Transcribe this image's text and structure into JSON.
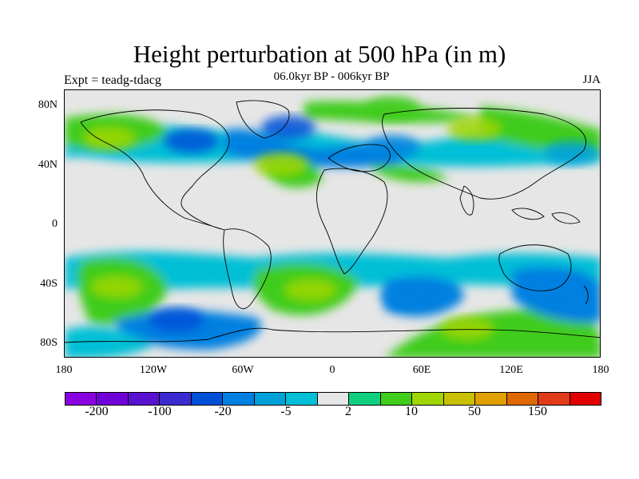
{
  "title": "Height perturbation at 500 hPa (in m)",
  "subtitle": "06.0kyr BP - 006kyr BP",
  "left_label": "Expt = teadg-tdacg",
  "right_label": "JJA",
  "map": {
    "projection": "cylindrical equidistant",
    "lon_range": [
      -180,
      180
    ],
    "lat_range": [
      -90,
      90
    ],
    "lat_ticks": [
      "80N",
      "40N",
      "0",
      "40S",
      "80S"
    ],
    "lon_ticks": [
      "180",
      "120W",
      "60W",
      "0",
      "60E",
      "120E",
      "180"
    ],
    "anomaly_regions": [
      {
        "name": "west-pacific-north-pos",
        "lon": -150,
        "lat": 58,
        "class": "positive",
        "color": "#a0d600"
      },
      {
        "name": "north-atlantic-pos",
        "lon": -35,
        "lat": 40,
        "class": "positive",
        "color": "#a0d600"
      },
      {
        "name": "arctic-europe-pos",
        "lon": 40,
        "lat": 78,
        "class": "positive",
        "color": "#3fcc1a"
      },
      {
        "name": "central-asia-pos",
        "lon": 95,
        "lat": 64,
        "class": "positive",
        "color": "#a0d600"
      },
      {
        "name": "east-asia-neg",
        "lon": 160,
        "lat": 48,
        "class": "negative",
        "color": "#00a0d8"
      },
      {
        "name": "north-america-neg",
        "lon": -95,
        "lat": 56,
        "class": "negative",
        "color": "#0050d8"
      },
      {
        "name": "north-atlantic-neg",
        "lon": -30,
        "lat": 65,
        "class": "negative",
        "color": "#0050d8"
      },
      {
        "name": "europe-neg",
        "lon": 40,
        "lat": 52,
        "class": "negative",
        "color": "#0080e0"
      },
      {
        "name": "south-pacific-pos",
        "lon": -145,
        "lat": -42,
        "class": "positive",
        "color": "#a0d600"
      },
      {
        "name": "south-atlantic-pos",
        "lon": -15,
        "lat": -44,
        "class": "positive",
        "color": "#a0d600"
      },
      {
        "name": "indian-ocean-neg",
        "lon": 50,
        "lat": -48,
        "class": "negative",
        "color": "#0080e0"
      },
      {
        "name": "australia-neg",
        "lon": 150,
        "lat": -42,
        "class": "negative",
        "color": "#0080e0"
      },
      {
        "name": "southern-ocean-neg",
        "lon": -105,
        "lat": -64,
        "class": "negative",
        "color": "#0050d8"
      },
      {
        "name": "antarctic-pos",
        "lon": 90,
        "lat": -70,
        "class": "positive",
        "color": "#a0d600"
      }
    ]
  },
  "colorbar": {
    "colors": [
      "#8a00e0",
      "#7000d8",
      "#5a10d0",
      "#3b2ad0",
      "#0050d8",
      "#0080e0",
      "#00a0d8",
      "#00bfd6",
      "#e6e6e6",
      "#10d080",
      "#40cc1a",
      "#a0d600",
      "#c8c000",
      "#e0a000",
      "#e06800",
      "#e03a18",
      "#e00000"
    ],
    "labels": [
      "-200",
      "-100",
      "-20",
      "-5",
      "2",
      "10",
      "50",
      "150"
    ]
  }
}
